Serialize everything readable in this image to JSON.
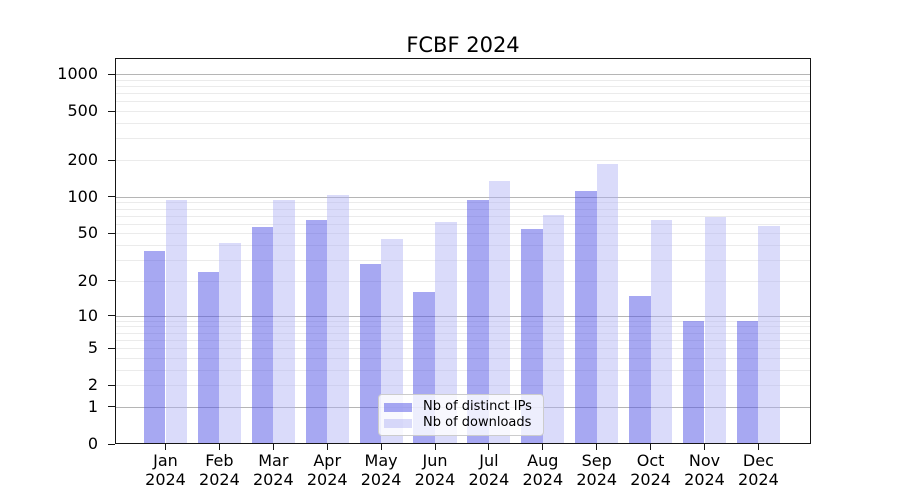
{
  "chart_data": {
    "type": "bar",
    "title": "FCBF 2024",
    "categories": [
      "Jan",
      "Feb",
      "Mar",
      "Apr",
      "May",
      "Jun",
      "Jul",
      "Aug",
      "Sep",
      "Oct",
      "Nov",
      "Dec"
    ],
    "x_year_label": "2024",
    "series": [
      {
        "name": "Nb of distinct IPs",
        "color_hex": "#a7a8f2",
        "css_color": "rgba(79,81,230,0.50)",
        "values": [
          36,
          24,
          57,
          65,
          28,
          16,
          94,
          54,
          112,
          15,
          9,
          9
        ]
      },
      {
        "name": "Nb of downloads",
        "color_hex": "#d9daf9",
        "css_color": "rgba(173,175,245,0.45)",
        "values": [
          94,
          42,
          94,
          104,
          45,
          62,
          136,
          71,
          186,
          65,
          68,
          58
        ]
      }
    ],
    "yscale": "log1p",
    "ylim": [
      0,
      1349
    ],
    "y_ticks": [
      0,
      1,
      2,
      5,
      10,
      20,
      50,
      100,
      200,
      500,
      1000
    ],
    "grid": "both",
    "grid_major_color": "#b5b5b5",
    "grid_minor_color": "#ebebeb",
    "legend_position": "lower center",
    "legend": [
      "Nb of distinct IPs",
      "Nb of downloads"
    ]
  }
}
